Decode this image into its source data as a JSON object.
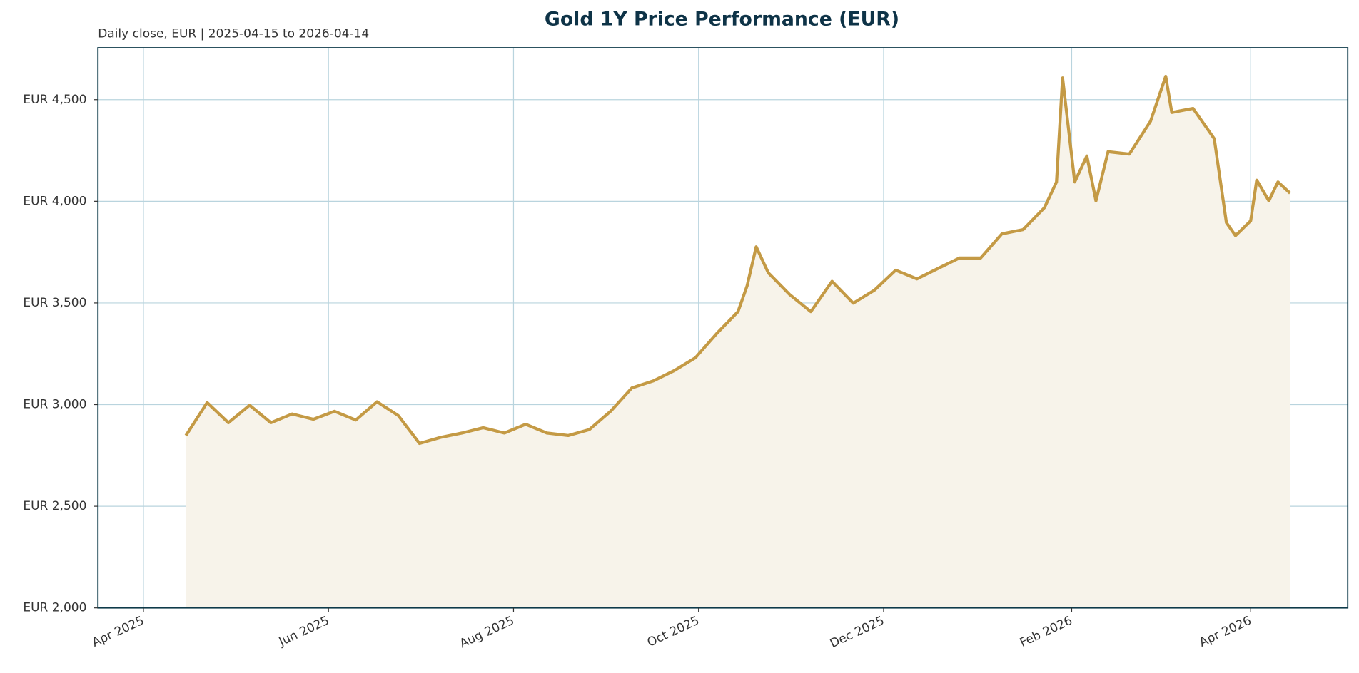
{
  "chart_data": {
    "type": "line",
    "title": "Gold 1Y Price Performance (EUR)",
    "subtitle": "Daily close, EUR | 2025-04-15 to 2026-04-14",
    "x": [
      "2025-04-15",
      "2025-04-22",
      "2025-04-29",
      "2025-05-06",
      "2025-05-13",
      "2025-05-20",
      "2025-05-27",
      "2025-06-03",
      "2025-06-10",
      "2025-06-17",
      "2025-06-24",
      "2025-07-01",
      "2025-07-08",
      "2025-07-15",
      "2025-07-22",
      "2025-07-29",
      "2025-08-05",
      "2025-08-12",
      "2025-08-19",
      "2025-08-26",
      "2025-09-02",
      "2025-09-09",
      "2025-09-16",
      "2025-09-23",
      "2025-09-30",
      "2025-10-07",
      "2025-10-14",
      "2025-10-17",
      "2025-10-20",
      "2025-10-24",
      "2025-10-31",
      "2025-11-07",
      "2025-11-14",
      "2025-11-21",
      "2025-11-28",
      "2025-12-05",
      "2025-12-12",
      "2025-12-19",
      "2025-12-26",
      "2026-01-02",
      "2026-01-09",
      "2026-01-16",
      "2026-01-23",
      "2026-01-27",
      "2026-01-29",
      "2026-02-02",
      "2026-02-06",
      "2026-02-09",
      "2026-02-13",
      "2026-02-20",
      "2026-02-27",
      "2026-03-04",
      "2026-03-06",
      "2026-03-13",
      "2026-03-20",
      "2026-03-24",
      "2026-03-27",
      "2026-04-01",
      "2026-04-03",
      "2026-04-07",
      "2026-04-10",
      "2026-04-14"
    ],
    "series": [
      {
        "name": "Gold",
        "color": "#c49a45",
        "fill": "#f7f3ea",
        "values": [
          2848,
          3010,
          2911,
          2997,
          2911,
          2954,
          2928,
          2967,
          2924,
          3014,
          2946,
          2809,
          2839,
          2860,
          2886,
          2860,
          2903,
          2860,
          2848,
          2877,
          2967,
          3082,
          3116,
          3167,
          3231,
          3350,
          3457,
          3584,
          3776,
          3648,
          3542,
          3457,
          3606,
          3499,
          3563,
          3661,
          3618,
          3670,
          3721,
          3721,
          3840,
          3861,
          3968,
          4095,
          4607,
          4095,
          4223,
          4002,
          4244,
          4232,
          4394,
          4615,
          4437,
          4457,
          4308,
          3895,
          3831,
          3904,
          4104,
          4002,
          4095,
          4040
        ]
      }
    ],
    "xlim": [
      "2025-03-17",
      "2026-05-03"
    ],
    "xticks": [
      {
        "value": "2025-04-01",
        "label": "Apr 2025"
      },
      {
        "value": "2025-06-01",
        "label": "Jun 2025"
      },
      {
        "value": "2025-08-01",
        "label": "Aug 2025"
      },
      {
        "value": "2025-10-01",
        "label": "Oct 2025"
      },
      {
        "value": "2025-12-01",
        "label": "Dec 2025"
      },
      {
        "value": "2026-02-01",
        "label": "Feb 2026"
      },
      {
        "value": "2026-04-01",
        "label": "Apr 2026"
      }
    ],
    "ylim": [
      2000,
      4755
    ],
    "yticks": [
      {
        "value": 2000,
        "label": "EUR 2,000"
      },
      {
        "value": 2500,
        "label": "EUR 2,500"
      },
      {
        "value": 3000,
        "label": "EUR 3,000"
      },
      {
        "value": 3500,
        "label": "EUR 3,500"
      },
      {
        "value": 4000,
        "label": "EUR 4,000"
      },
      {
        "value": 4500,
        "label": "EUR 4,500"
      }
    ],
    "grid": true
  }
}
